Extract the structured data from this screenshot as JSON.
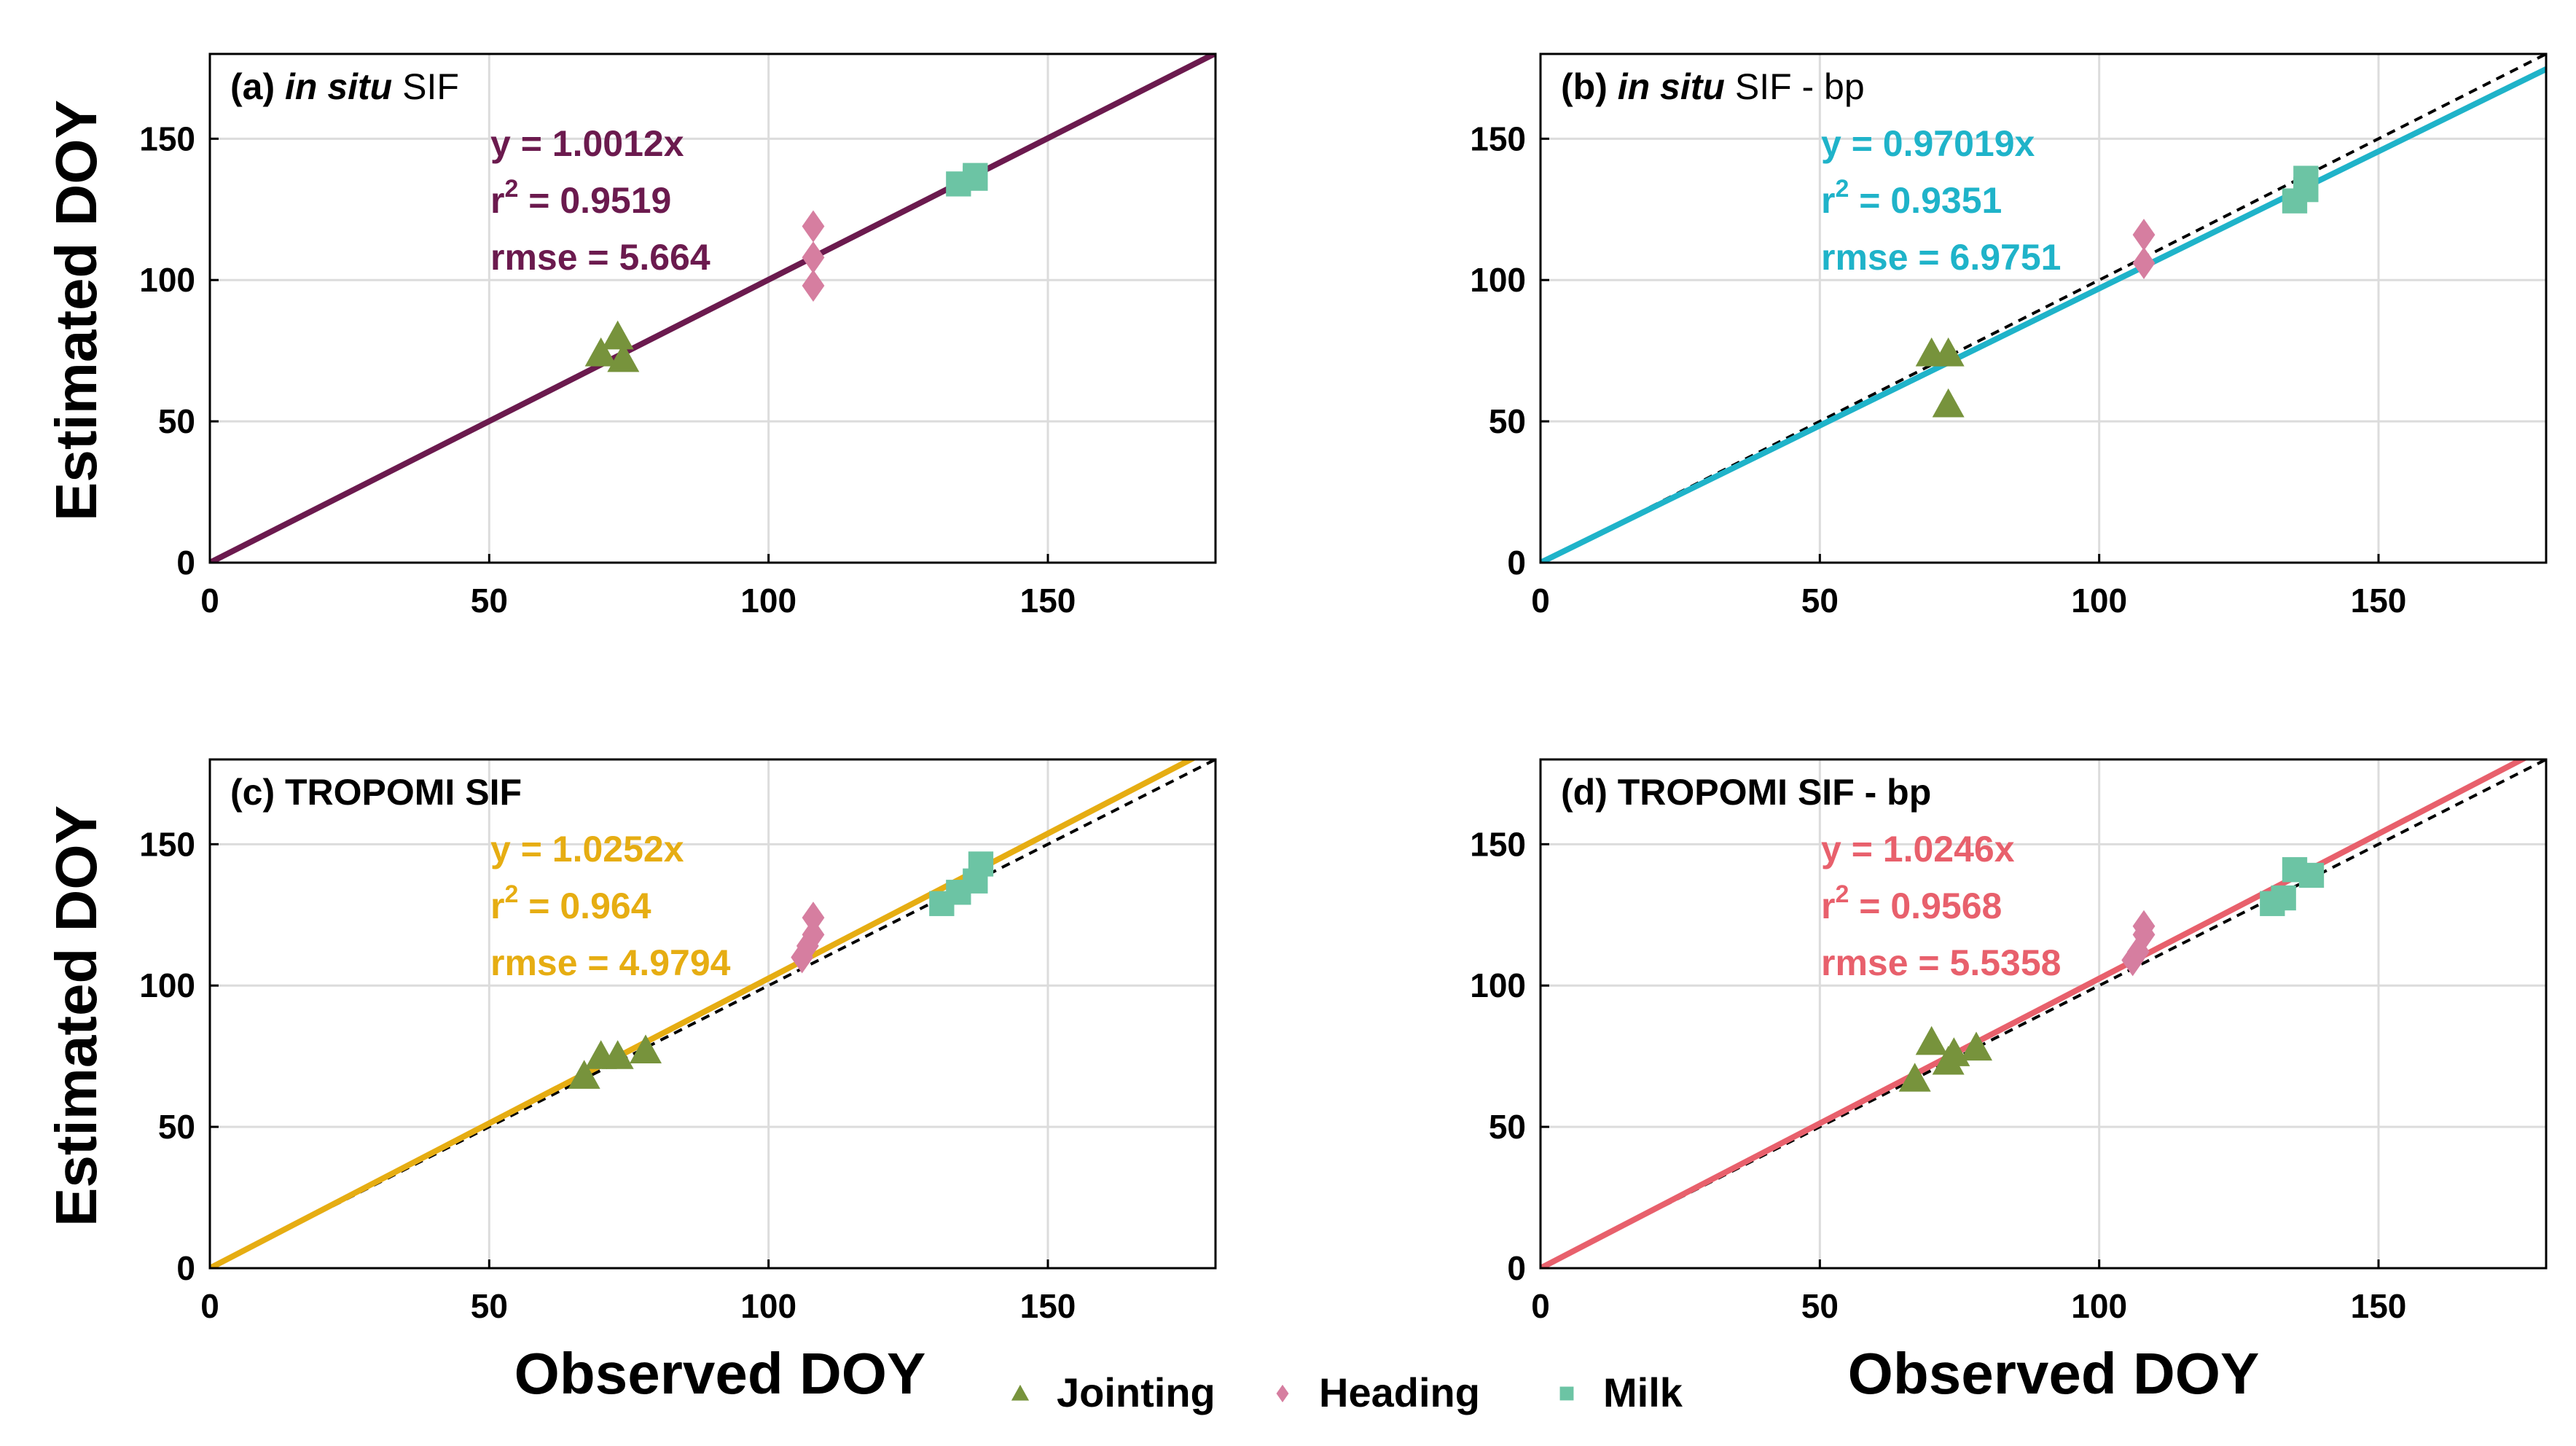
{
  "figure": {
    "xlabel": "Observed DOY",
    "ylabel": "Estimated DOY",
    "xlim": [
      0,
      180
    ],
    "ylim": [
      0,
      180
    ],
    "ticks": [
      0,
      50,
      100,
      150
    ],
    "colors": {
      "jointing": "#77933c",
      "heading": "#d67ea0",
      "milk": "#6cc4a4",
      "grid": "#dcdcdc",
      "one_to_one": "#000000"
    }
  },
  "legend": {
    "items": [
      {
        "key": "jointing",
        "label": "Jointing",
        "marker": "triangle"
      },
      {
        "key": "heading",
        "label": "Heading",
        "marker": "diamond"
      },
      {
        "key": "milk",
        "label": "Milk",
        "marker": "square"
      }
    ]
  },
  "chart_data": [
    {
      "type": "scatter",
      "id": "a",
      "title_prefix": "(a) ",
      "title_italic": "in situ",
      "title_rest": " SIF",
      "title_rest_bold": false,
      "line_color": "#6b1a4e",
      "slope": 1.0012,
      "show_one_to_one": false,
      "equation": "y = 1.0012x",
      "r2_base": "r",
      "r2_sup": "2",
      "r2_rest": " = 0.9519",
      "rmse": "rmse = 5.664",
      "series": [
        {
          "name": "Jointing",
          "points": [
            [
              70,
              74
            ],
            [
              73,
              80
            ],
            [
              74,
              72
            ]
          ]
        },
        {
          "name": "Heading",
          "points": [
            [
              108,
              119
            ],
            [
              108,
              108
            ],
            [
              108,
              98
            ]
          ]
        },
        {
          "name": "Milk",
          "points": [
            [
              134,
              134
            ],
            [
              137,
              137
            ],
            [
              137,
              136
            ]
          ]
        }
      ]
    },
    {
      "type": "scatter",
      "id": "b",
      "title_prefix": "(b) ",
      "title_italic": "in situ",
      "title_rest": " SIF - bp",
      "title_rest_bold": false,
      "line_color": "#1fb3c9",
      "slope": 0.97019,
      "show_one_to_one": true,
      "equation": "y = 0.97019x",
      "r2_base": "r",
      "r2_sup": "2",
      "r2_rest": " = 0.9351",
      "rmse": "rmse = 6.9751",
      "series": [
        {
          "name": "Jointing",
          "points": [
            [
              70,
              74
            ],
            [
              73,
              74
            ],
            [
              73,
              56
            ]
          ]
        },
        {
          "name": "Heading",
          "points": [
            [
              108,
              116
            ],
            [
              108,
              106
            ]
          ]
        },
        {
          "name": "Milk",
          "points": [
            [
              135,
              128
            ],
            [
              137,
              136
            ],
            [
              137,
              132
            ]
          ]
        }
      ]
    },
    {
      "type": "scatter",
      "id": "c",
      "title_prefix": "(c) ",
      "title_italic": "",
      "title_rest": "TROPOMI SIF",
      "title_rest_bold": true,
      "line_color": "#e6ad12",
      "slope": 1.0252,
      "show_one_to_one": true,
      "equation": "y = 1.0252x",
      "r2_base": "r",
      "r2_sup": "2",
      "r2_rest": " = 0.964",
      "rmse": "rmse = 4.9794",
      "series": [
        {
          "name": "Jointing",
          "points": [
            [
              67,
              68
            ],
            [
              70,
              75
            ],
            [
              73,
              75
            ],
            [
              78,
              77
            ]
          ]
        },
        {
          "name": "Heading",
          "points": [
            [
              106,
              110
            ],
            [
              107,
              114
            ],
            [
              108,
              124
            ],
            [
              108,
              118
            ]
          ]
        },
        {
          "name": "Milk",
          "points": [
            [
              131,
              129
            ],
            [
              134,
              133
            ],
            [
              137,
              137
            ],
            [
              138,
              143
            ]
          ]
        }
      ]
    },
    {
      "type": "scatter",
      "id": "d",
      "title_prefix": "(d) ",
      "title_italic": "",
      "title_rest": "TROPOMI SIF - bp",
      "title_rest_bold": true,
      "line_color": "#e8606c",
      "slope": 1.0246,
      "show_one_to_one": true,
      "equation": "y = 1.0246x",
      "r2_base": "r",
      "r2_sup": "2",
      "r2_rest": " = 0.9568",
      "rmse": "rmse = 5.5358",
      "series": [
        {
          "name": "Jointing",
          "points": [
            [
              67,
              67
            ],
            [
              70,
              80
            ],
            [
              73,
              73
            ],
            [
              74,
              76
            ],
            [
              78,
              78
            ]
          ]
        },
        {
          "name": "Heading",
          "points": [
            [
              106,
              109
            ],
            [
              107,
              112
            ],
            [
              108,
              121
            ],
            [
              108,
              118
            ]
          ]
        },
        {
          "name": "Milk",
          "points": [
            [
              131,
              129
            ],
            [
              133,
              131
            ],
            [
              135,
              141
            ],
            [
              138,
              139
            ]
          ]
        }
      ]
    }
  ]
}
